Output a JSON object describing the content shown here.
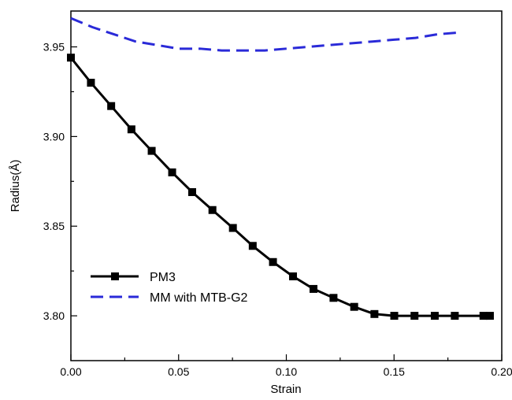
{
  "chart_data": {
    "type": "line",
    "title": "",
    "xlabel": "Strain",
    "ylabel": "Radius(Å)",
    "xlim": [
      0.0,
      0.2
    ],
    "ylim": [
      3.775,
      3.97
    ],
    "xticks": [
      0.0,
      0.05,
      0.1,
      0.15,
      0.2
    ],
    "xtick_labels": [
      "0.00",
      "0.05",
      "0.10",
      "0.15",
      "0.20"
    ],
    "yticks": [
      3.8,
      3.85,
      3.9,
      3.95
    ],
    "ytick_labels": [
      "3.80",
      "3.85",
      "3.90",
      "3.95"
    ],
    "grid": false,
    "legend_position": "lower-left",
    "series": [
      {
        "name": "PM3",
        "color": "#000000",
        "style": "solid",
        "marker": "square",
        "x": [
          0.0,
          0.0093,
          0.0187,
          0.0281,
          0.0375,
          0.047,
          0.0563,
          0.0657,
          0.0752,
          0.0844,
          0.0938,
          0.1031,
          0.1126,
          0.1219,
          0.1315,
          0.1409,
          0.1501,
          0.1595,
          0.1689,
          0.1782,
          0.1915,
          0.1945
        ],
        "y": [
          3.944,
          3.93,
          3.917,
          3.904,
          3.892,
          3.88,
          3.869,
          3.859,
          3.849,
          3.839,
          3.83,
          3.822,
          3.815,
          3.81,
          3.805,
          3.801,
          3.8,
          3.8,
          3.8,
          3.8,
          3.8,
          3.8
        ]
      },
      {
        "name": "MM with MTB-G2",
        "color": "#2a2ad8",
        "style": "dashed",
        "marker": "none",
        "x": [
          0.0,
          0.01,
          0.02,
          0.03,
          0.04,
          0.05,
          0.06,
          0.07,
          0.08,
          0.09,
          0.1,
          0.11,
          0.12,
          0.13,
          0.14,
          0.15,
          0.16,
          0.17,
          0.18
        ],
        "y": [
          3.966,
          3.961,
          3.957,
          3.953,
          3.951,
          3.949,
          3.949,
          3.948,
          3.948,
          3.948,
          3.949,
          3.95,
          3.951,
          3.952,
          3.953,
          3.954,
          3.955,
          3.957,
          3.958
        ]
      }
    ]
  }
}
